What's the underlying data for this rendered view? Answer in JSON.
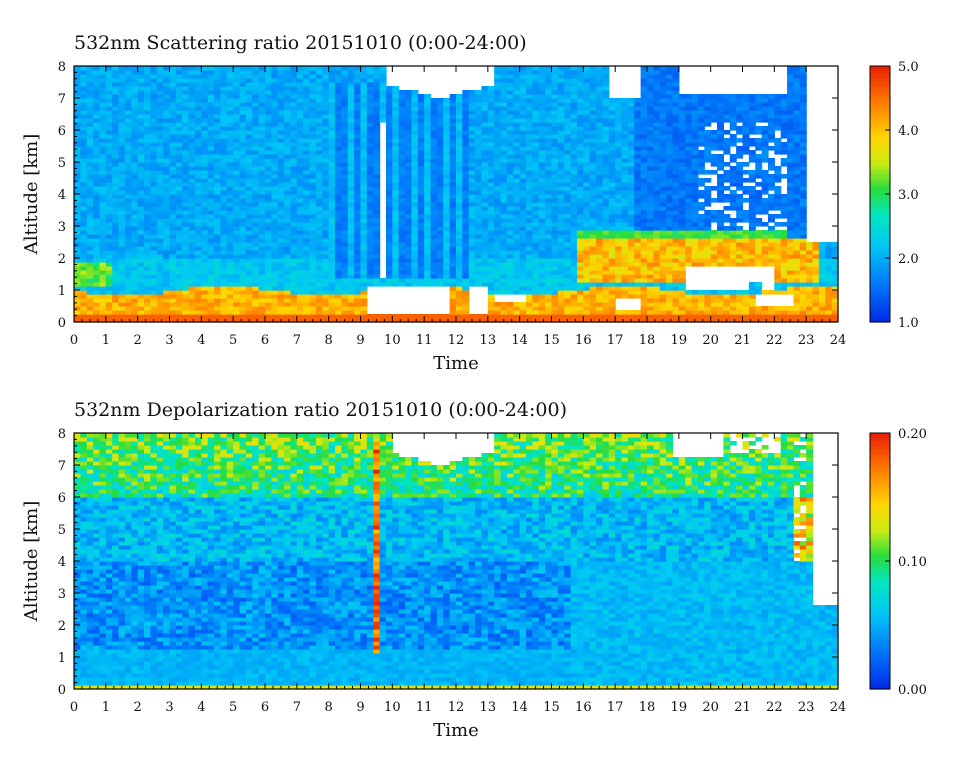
{
  "chart_data": [
    {
      "type": "heatmap",
      "title": "532nm Scattering ratio  20151010 (0:00-24:00)",
      "xlabel": "Time",
      "ylabel": "Altitude [km]",
      "x_ticks": [
        "0",
        "1",
        "2",
        "3",
        "4",
        "5",
        "6",
        "7",
        "8",
        "9",
        "10",
        "11",
        "12",
        "13",
        "14",
        "15",
        "16",
        "17",
        "18",
        "19",
        "20",
        "21",
        "22",
        "23",
        "24"
      ],
      "y_ticks": [
        "0",
        "1",
        "2",
        "3",
        "4",
        "5",
        "6",
        "7",
        "8"
      ],
      "xlim": [
        0,
        24
      ],
      "ylim": [
        0,
        8
      ],
      "colorbar": {
        "range": [
          1.0,
          5.0
        ],
        "ticks": [
          "1.0",
          "2.0",
          "3.0",
          "4.0",
          "5.0"
        ],
        "scale": "rainbow"
      },
      "features": {
        "background_value": 2.0,
        "boundary_layer_top_km": 1.0,
        "near_surface_value": 4.5,
        "cloud_gaps_white": true
      }
    },
    {
      "type": "heatmap",
      "title": "532nm Depolarization ratio  20151010 (0:00-24:00)",
      "xlabel": "Time",
      "ylabel": "Altitude [km]",
      "x_ticks": [
        "0",
        "1",
        "2",
        "3",
        "4",
        "5",
        "6",
        "7",
        "8",
        "9",
        "10",
        "11",
        "12",
        "13",
        "14",
        "15",
        "16",
        "17",
        "18",
        "19",
        "20",
        "21",
        "22",
        "23",
        "24"
      ],
      "y_ticks": [
        "0",
        "1",
        "2",
        "3",
        "4",
        "5",
        "6",
        "7",
        "8"
      ],
      "xlim": [
        0,
        24
      ],
      "ylim": [
        0,
        8
      ],
      "colorbar": {
        "range": [
          0.0,
          0.2
        ],
        "ticks": [
          "0.00",
          "0.10",
          "0.20"
        ],
        "scale": "rainbow"
      },
      "features": {
        "background_value": 0.03,
        "upper_value": 0.09,
        "spike_time_h": 9.6,
        "cloud_gaps_white": true
      }
    }
  ]
}
